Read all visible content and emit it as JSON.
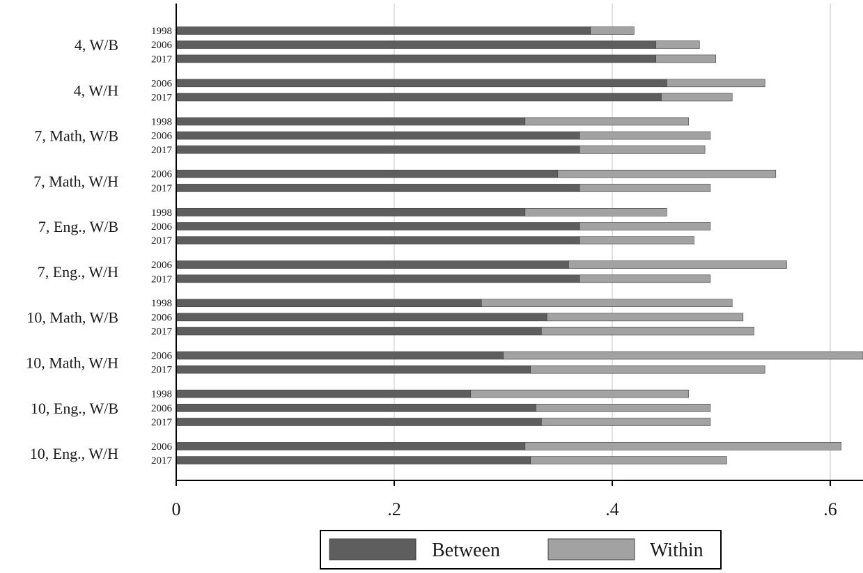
{
  "colors": {
    "between": "#5e5e5e",
    "within": "#a2a2a2",
    "bar_edge": "#3c3c3c",
    "grid": "#d9d9d9",
    "axis": "#000000"
  },
  "chart_data": {
    "type": "bar",
    "orientation": "horizontal",
    "stacked": true,
    "title": "",
    "xlabel": "",
    "ylabel": "",
    "xlim": [
      0,
      0.63
    ],
    "xticks": [
      {
        "value": 0,
        "label": "0"
      },
      {
        "value": 0.2,
        "label": ".2"
      },
      {
        "value": 0.4,
        "label": ".4"
      },
      {
        "value": 0.6,
        "label": ".6"
      }
    ],
    "grid": true,
    "legend_position": "bottom",
    "series": [
      {
        "name": "Between",
        "color_key": "between"
      },
      {
        "name": "Within",
        "color_key": "within"
      }
    ],
    "groups": [
      {
        "label": "4, W/B",
        "bars": [
          {
            "year": "1998",
            "between": 0.38,
            "within": 0.04
          },
          {
            "year": "2006",
            "between": 0.44,
            "within": 0.04
          },
          {
            "year": "2017",
            "between": 0.44,
            "within": 0.055
          }
        ]
      },
      {
        "label": "4, W/H",
        "bars": [
          {
            "year": "2006",
            "between": 0.45,
            "within": 0.09
          },
          {
            "year": "2017",
            "between": 0.445,
            "within": 0.065
          }
        ]
      },
      {
        "label": "7, Math, W/B",
        "bars": [
          {
            "year": "1998",
            "between": 0.32,
            "within": 0.15
          },
          {
            "year": "2006",
            "between": 0.37,
            "within": 0.12
          },
          {
            "year": "2017",
            "between": 0.37,
            "within": 0.115
          }
        ]
      },
      {
        "label": "7, Math, W/H",
        "bars": [
          {
            "year": "2006",
            "between": 0.35,
            "within": 0.2
          },
          {
            "year": "2017",
            "between": 0.37,
            "within": 0.12
          }
        ]
      },
      {
        "label": "7, Eng., W/B",
        "bars": [
          {
            "year": "1998",
            "between": 0.32,
            "within": 0.13
          },
          {
            "year": "2006",
            "between": 0.37,
            "within": 0.12
          },
          {
            "year": "2017",
            "between": 0.37,
            "within": 0.105
          }
        ]
      },
      {
        "label": "7, Eng., W/H",
        "bars": [
          {
            "year": "2006",
            "between": 0.36,
            "within": 0.2
          },
          {
            "year": "2017",
            "between": 0.37,
            "within": 0.12
          }
        ]
      },
      {
        "label": "10, Math, W/B",
        "bars": [
          {
            "year": "1998",
            "between": 0.28,
            "within": 0.23
          },
          {
            "year": "2006",
            "between": 0.34,
            "within": 0.18
          },
          {
            "year": "2017",
            "between": 0.335,
            "within": 0.195
          }
        ]
      },
      {
        "label": "10, Math, W/H",
        "bars": [
          {
            "year": "2006",
            "between": 0.3,
            "within": 0.33
          },
          {
            "year": "2017",
            "between": 0.325,
            "within": 0.215
          }
        ]
      },
      {
        "label": "10, Eng., W/B",
        "bars": [
          {
            "year": "1998",
            "between": 0.27,
            "within": 0.2
          },
          {
            "year": "2006",
            "between": 0.33,
            "within": 0.16
          },
          {
            "year": "2017",
            "between": 0.335,
            "within": 0.155
          }
        ]
      },
      {
        "label": "10, Eng., W/H",
        "bars": [
          {
            "year": "2006",
            "between": 0.32,
            "within": 0.29
          },
          {
            "year": "2017",
            "between": 0.325,
            "within": 0.18
          }
        ]
      }
    ]
  }
}
